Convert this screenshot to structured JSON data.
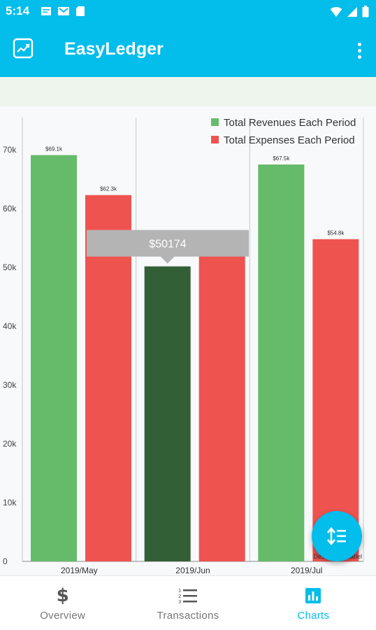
{
  "status_bar": {
    "time": "5:14"
  },
  "app_bar": {
    "title": "EasyLedger"
  },
  "tooltip": {
    "text": "$50174"
  },
  "fab": {
    "icon": "sort-numbered-icon"
  },
  "watermark": {
    "text": "Description Label"
  },
  "bottom_nav": {
    "items": [
      {
        "label": "Overview",
        "icon": "dollar-icon",
        "active": false
      },
      {
        "label": "Transactions",
        "icon": "numbered-list-icon",
        "active": false
      },
      {
        "label": "Charts",
        "icon": "bar-chart-icon",
        "active": true
      }
    ]
  },
  "colors": {
    "accent": "#03bdeb",
    "revenue": "#66bb6a",
    "expense": "#ef5350",
    "highlight": "#335f37"
  },
  "chart_data": {
    "type": "bar",
    "categories": [
      "2019/May",
      "2019/Jun",
      "2019/Jul"
    ],
    "series": [
      {
        "name": "Total Revenues Each Period",
        "values": [
          69100,
          50174,
          67500
        ],
        "labels": [
          "$69.1k",
          "",
          "$67.5k"
        ]
      },
      {
        "name": "Total Expenses Each Period",
        "values": [
          62300,
          52000,
          54800
        ],
        "labels": [
          "$62.3k",
          "",
          "$54.8k"
        ]
      }
    ],
    "highlighted": {
      "series": 0,
      "category": 1
    },
    "yticks": [
      "0",
      "10k",
      "20k",
      "30k",
      "40k",
      "50k",
      "60k",
      "70k"
    ],
    "ylim": [
      0,
      75000
    ],
    "legend_position": "top-right",
    "grid": "vertical"
  }
}
